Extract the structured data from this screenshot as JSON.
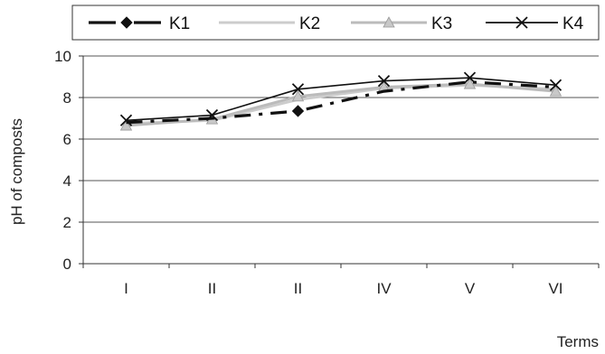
{
  "chart_data": {
    "type": "line",
    "title": "",
    "xlabel": "Terms",
    "ylabel": "pH of composts",
    "categories": [
      "I",
      "II",
      "II",
      "IV",
      "V",
      "VI"
    ],
    "ylim": [
      0,
      10
    ],
    "yticks": [
      0,
      2,
      4,
      6,
      8,
      10
    ],
    "grid": "horizontal",
    "legend_position": "top",
    "series": [
      {
        "name": "K1",
        "values": [
          6.8,
          7.0,
          7.35,
          8.3,
          8.75,
          8.5
        ],
        "color": "#111111",
        "dash": "dashed",
        "marker": "diamond"
      },
      {
        "name": "K2",
        "values": [
          6.75,
          6.9,
          7.9,
          8.45,
          8.6,
          8.4
        ],
        "color": "#cccccc",
        "dash": "solid",
        "marker": "none"
      },
      {
        "name": "K3",
        "values": [
          6.65,
          6.95,
          8.05,
          8.5,
          8.65,
          8.3
        ],
        "color": "#bbbbbb",
        "dash": "solid",
        "marker": "triangle"
      },
      {
        "name": "K4",
        "values": [
          6.9,
          7.15,
          8.4,
          8.8,
          8.95,
          8.6
        ],
        "color": "#111111",
        "dash": "solid",
        "marker": "x"
      }
    ]
  }
}
